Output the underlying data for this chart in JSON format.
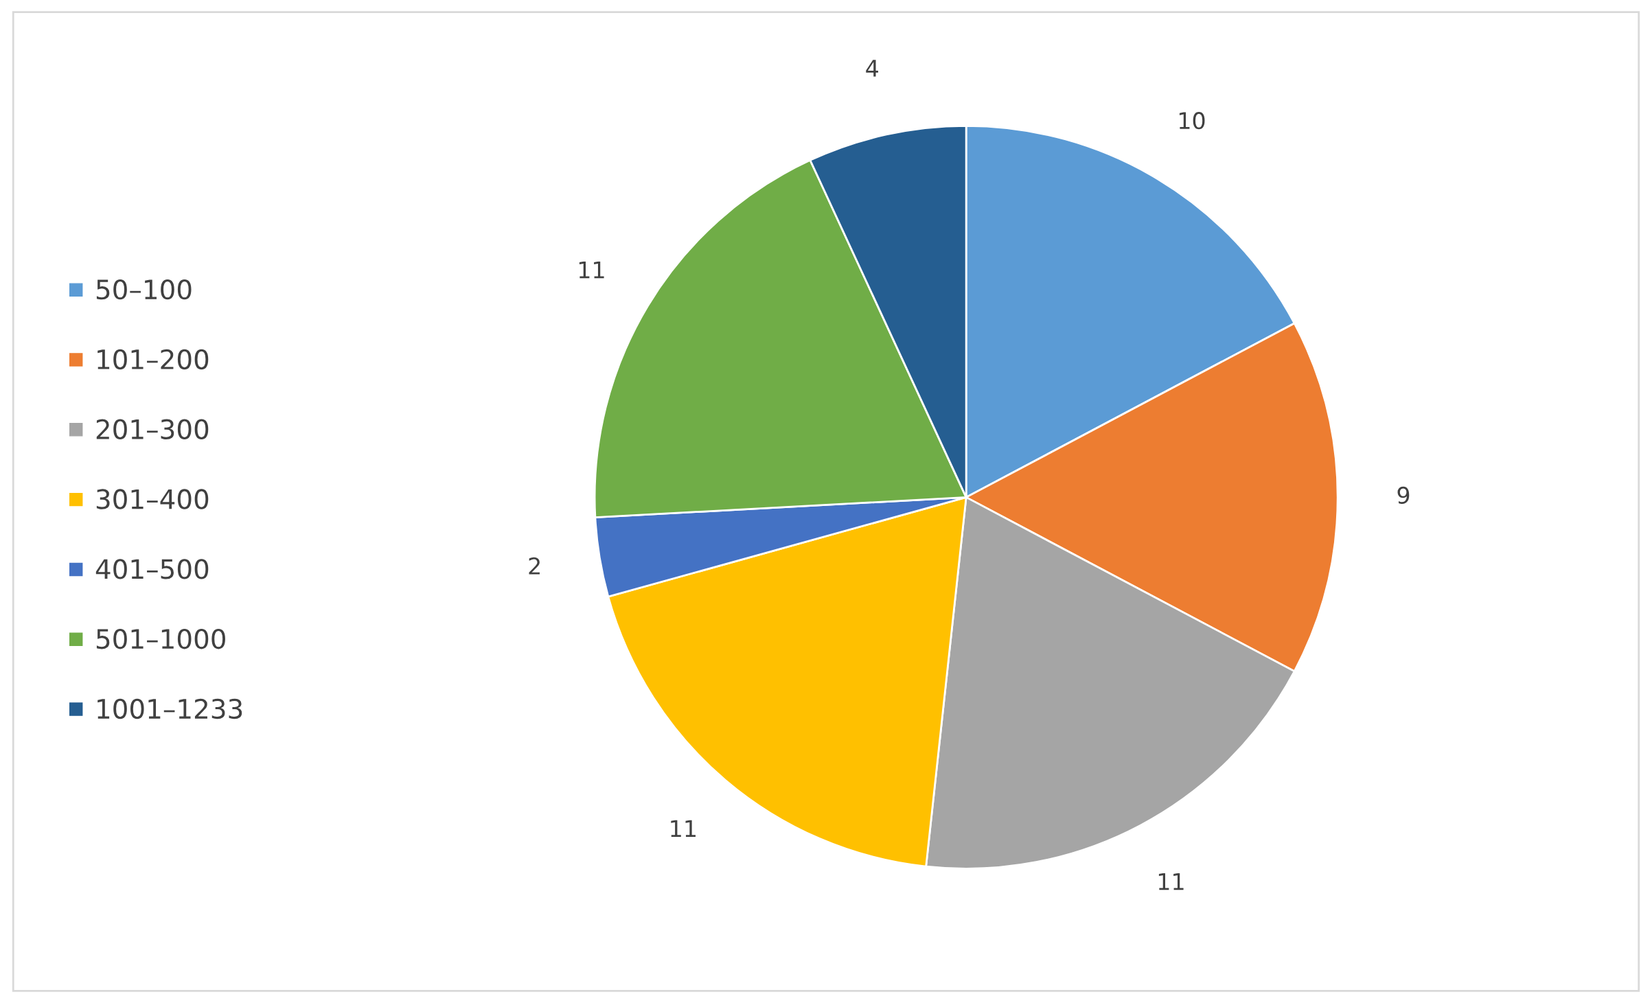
{
  "chart_data": {
    "type": "pie",
    "categories": [
      "50–100",
      "101–200",
      "201–300",
      "301–400",
      "401–500",
      "501–1000",
      "1001–1233"
    ],
    "values": [
      10,
      9,
      11,
      11,
      2,
      11,
      4
    ],
    "colors": [
      "#5b9bd5",
      "#ed7d31",
      "#a5a5a5",
      "#ffc000",
      "#4472c4",
      "#70ad47",
      "#255e91"
    ],
    "data_labels": true,
    "legend": "left"
  }
}
